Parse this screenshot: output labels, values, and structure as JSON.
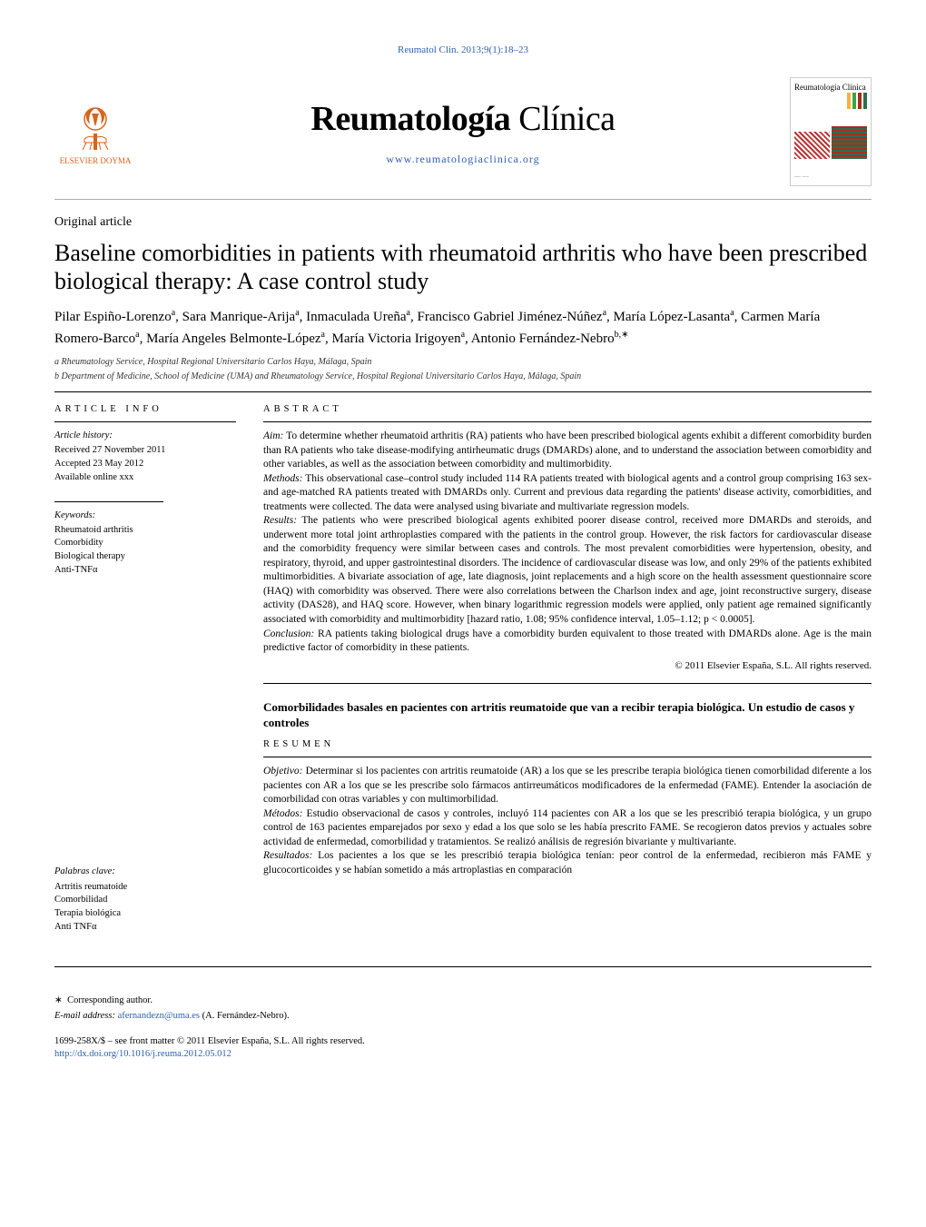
{
  "citation": {
    "text": "Reumatol Clin. 2013;9(1):18–23",
    "href": "#"
  },
  "masthead": {
    "publisher_logo_text": "ELSEVIER DOYMA",
    "logo_color": "#d9631e",
    "journal_name_bold": "Reumatología",
    "journal_name_light": " Clínica",
    "journal_url": "www.reumatologiaclinica.org",
    "cover_label": "Reumatología Clínica",
    "bar_colors": [
      "#f6b042",
      "#3ea34a",
      "#a32f1f",
      "#2c6e4f"
    ]
  },
  "article": {
    "type": "Original article",
    "title": "Baseline comorbidities in patients with rheumatoid arthritis who have been prescribed biological therapy: A case control study",
    "authors_html": "Pilar Espiño-Lorenzo<sup>a</sup>,  Sara Manrique-Arija<sup>a</sup>,  Inmaculada Ureña<sup>a</sup>,  Francisco Gabriel Jiménez-Núñez<sup>a</sup>, María López-Lasanta<sup>a</sup>,  Carmen María Romero-Barco<sup>a</sup>,  María Angeles Belmonte-López<sup>a</sup>, María Victoria Irigoyen<sup>a</sup>, Antonio Fernández-Nebro<sup>b,∗</sup>",
    "affiliations": [
      "a Rheumatology Service, Hospital Regional Universitario Carlos Haya, Málaga, Spain",
      "b Department of Medicine, School of Medicine (UMA) and Rheumatology Service, Hospital Regional Universitario Carlos Haya, Málaga, Spain"
    ]
  },
  "info": {
    "heading": "article info",
    "history_label": "Article history:",
    "history_items": [
      "Received 27 November 2011",
      "Accepted 23 May 2012",
      "Available online xxx"
    ],
    "keywords_label": "Keywords:",
    "keywords": [
      "Rheumatoid arthritis",
      "Comorbidity",
      "Biological therapy",
      "Anti-TNFα"
    ],
    "palabras_label": "Palabras clave:",
    "palabras": [
      "Artritis reumatoide",
      "Comorbilidad",
      "Terapia biológica",
      "Anti TNFα"
    ]
  },
  "abstract": {
    "heading": "abstract",
    "aim_label": "Aim:",
    "aim": " To determine whether rheumatoid arthritis (RA) patients who have been prescribed biological agents exhibit a different comorbidity burden than RA patients who take disease-modifying antirheumatic drugs (DMARDs) alone, and to understand the association between comorbidity and other variables, as well as the association between comorbidity and multimorbidity.",
    "methods_label": "Methods:",
    "methods": " This observational case–control study included 114 RA patients treated with biological agents and a control group comprising 163 sex- and age-matched RA patients treated with DMARDs only. Current and previous data regarding the patients' disease activity, comorbidities, and treatments were collected. The data were analysed using bivariate and multivariate regression models.",
    "results_label": "Results:",
    "results": " The patients who were prescribed biological agents exhibited poorer disease control, received more DMARDs and steroids, and underwent more total joint arthroplasties compared with the patients in the control group. However, the risk factors for cardiovascular disease and the comorbidity frequency were similar between cases and controls. The most prevalent comorbidities were hypertension, obesity, and respiratory, thyroid, and upper gastrointestinal disorders. The incidence of cardiovascular disease was low, and only 29% of the patients exhibited multimorbidities. A bivariate association of age, late diagnosis, joint replacements and a high score on the health assessment questionnaire score (HAQ) with comorbidity was observed. There were also correlations between the Charlson index and age, joint reconstructive surgery, disease activity (DAS28), and HAQ score. However, when binary logarithmic regression models were applied, only patient age remained significantly associated with comorbidity and multimorbidity [hazard ratio, 1.08; 95% confidence interval, 1.05–1.12; p < 0.0005].",
    "conclusion_label": "Conclusion:",
    "conclusion": " RA patients taking biological drugs have a comorbidity burden equivalent to those treated with DMARDs alone. Age is the main predictive factor of comorbidity in these patients.",
    "copyright": "© 2011 Elsevier España, S.L. All rights reserved."
  },
  "spanish": {
    "title": "Comorbilidades basales en pacientes con artritis reumatoide que van a recibir terapia biológica. Un estudio de casos y controles",
    "heading": "resumen",
    "objetivo_label": "Objetivo:",
    "objetivo": " Determinar si los pacientes con artritis reumatoide (AR) a los que se les prescribe terapia biológica tienen comorbilidad diferente a los pacientes con AR a los que se les prescribe solo fármacos antirreumáticos modificadores de la enfermedad (FAME). Entender la asociación de comorbilidad con otras variables y con multimorbilidad.",
    "metodos_label": "Métodos:",
    "metodos": " Estudio observacional de casos y controles, incluyó 114 pacientes con AR a los que se les prescribió terapia biológica, y un grupo control de 163 pacientes emparejados por sexo y edad a los que solo se les había prescrito FAME. Se recogieron datos previos y actuales sobre actividad de enfermedad, comorbilidad y tratamientos. Se realizó análisis de regresión bivariante y multivariante.",
    "resultados_label": "Resultados:",
    "resultados": " Los pacientes a los que se les prescribió terapia biológica tenían: peor control de la enfermedad, recibieron más FAME y glucocorticoides y se habían sometido a más artroplastias en comparación"
  },
  "footer": {
    "corr_symbol": "∗",
    "corr_text": "Corresponding author.",
    "email_label": "E-mail address: ",
    "email": "afernandezn@uma.es",
    "email_tail": " (A. Fernández-Nebro).",
    "front_matter": "1699-258X/$ – see front matter © 2011 Elsevier España, S.L. All rights reserved.",
    "doi": "http://dx.doi.org/10.1016/j.reuma.2012.05.012"
  }
}
